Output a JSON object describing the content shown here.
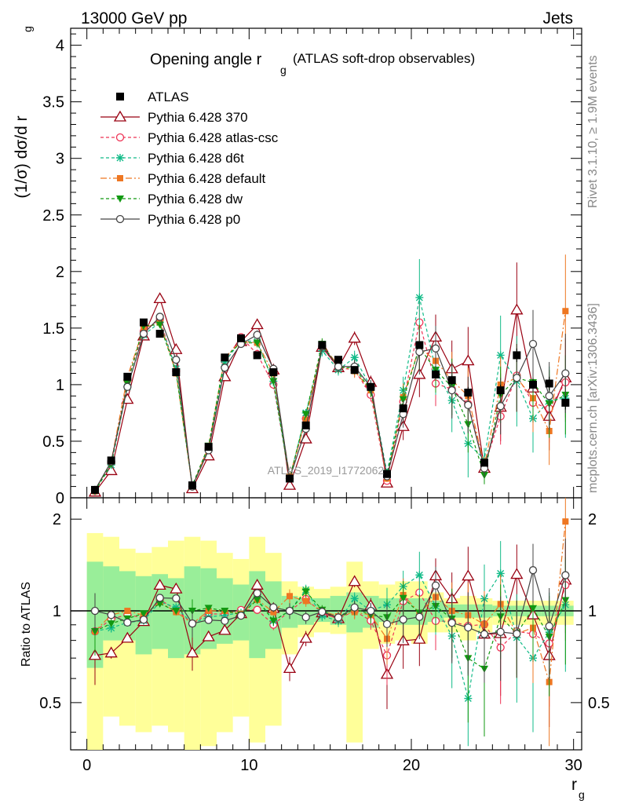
{
  "header": {
    "left": "13000 GeV pp",
    "right": "Jets"
  },
  "side_text": {
    "rivet": "Rivet 3.1.10, ≥ 1.9M events",
    "mcplots": "mcplots.cern.ch [arXiv:1306.3436]"
  },
  "plot_title": {
    "main": "Opening angle r",
    "sub": "g",
    "rest": "(ATLAS soft-drop observables)"
  },
  "watermark": "ATLAS_2019_I1772062",
  "colors": {
    "atlas": "#000000",
    "p370": "#990011",
    "csc": "#ee3355",
    "d6t": "#11bb88",
    "default": "#ee7722",
    "dw": "#119911",
    "p0": "#444444",
    "band_inner": "#99ee99",
    "band_outer": "#ffff99"
  },
  "chart_data": [
    {
      "type": "scatter",
      "panel": "main",
      "ylabel": "(1/σ) dσ/d r",
      "ylabel_sub": "g",
      "xlim": [
        -1,
        30.5
      ],
      "ylim": [
        0,
        4.15
      ],
      "xticks": [
        0,
        10,
        20,
        30
      ],
      "yticks": [
        0,
        0.5,
        1,
        1.5,
        2,
        2.5,
        3,
        3.5,
        4
      ],
      "ytick_labels": [
        "0",
        "0.5",
        "1",
        "1.5",
        "2",
        "2.5",
        "3",
        "3.5",
        "4"
      ],
      "x": [
        0.5,
        1.5,
        2.5,
        3.5,
        4.5,
        5.5,
        6.5,
        7.5,
        8.5,
        9.5,
        10.5,
        11.5,
        12.5,
        13.5,
        14.5,
        15.5,
        16.5,
        17.5,
        18.5,
        19.5,
        20.5,
        21.5,
        22.5,
        23.5,
        24.5,
        25.5,
        26.5,
        27.5,
        28.5,
        29.5
      ],
      "series": [
        {
          "name": "ATLAS",
          "key": "atlas",
          "marker": "square",
          "dash": "",
          "values": [
            0.07,
            0.33,
            1.07,
            1.55,
            1.45,
            1.11,
            0.11,
            0.45,
            1.24,
            1.41,
            1.26,
            1.11,
            0.17,
            0.64,
            1.35,
            1.22,
            1.13,
            0.98,
            0.21,
            0.79,
            1.35,
            1.09,
            1.04,
            0.93,
            0.31,
            0.95,
            1.26,
            1.0,
            1.01,
            0.84
          ],
          "errors": [
            0.01,
            0.01,
            0.02,
            0.02,
            0.02,
            0.02,
            0.01,
            0.01,
            0.02,
            0.02,
            0.02,
            0.02,
            0.01,
            0.02,
            0.02,
            0.02,
            0.02,
            0.02,
            0.02,
            0.03,
            0.03,
            0.04,
            0.04,
            0.05,
            0.03,
            0.05,
            0.06,
            0.06,
            0.06,
            0.06
          ]
        },
        {
          "name": "Pythia 6.428 370",
          "key": "p370",
          "marker": "triangle",
          "dash": "",
          "values": [
            0.05,
            0.24,
            0.87,
            1.43,
            1.76,
            1.31,
            0.08,
            0.37,
            1.07,
            1.38,
            1.53,
            1.13,
            0.11,
            0.52,
            1.33,
            1.15,
            1.41,
            1.02,
            0.13,
            0.63,
            1.09,
            1.42,
            1.14,
            1.21,
            0.26,
            0.8,
            1.66,
            0.97,
            0.72,
            1.06
          ],
          "errors": [
            0.01,
            0.01,
            0.02,
            0.03,
            0.03,
            0.03,
            0.01,
            0.01,
            0.03,
            0.03,
            0.04,
            0.04,
            0.01,
            0.03,
            0.05,
            0.05,
            0.06,
            0.06,
            0.03,
            0.12,
            0.2,
            0.2,
            0.25,
            0.3,
            0.1,
            0.3,
            0.42,
            0.35,
            0.3,
            0.35
          ]
        },
        {
          "name": "Pythia 6.428 atlas-csc",
          "key": "csc",
          "marker": "circle-open",
          "dash": "4,3",
          "values": [
            0.06,
            0.31,
            1.04,
            1.47,
            1.58,
            1.12,
            0.1,
            0.44,
            1.21,
            1.42,
            1.27,
            1.0,
            0.17,
            0.7,
            1.33,
            1.15,
            1.13,
            0.91,
            0.15,
            0.85,
            1.55,
            1.01,
            0.96,
            0.83,
            0.28,
            0.72,
            1.08,
            0.84,
            0.79,
            1.02
          ],
          "errors": [
            0.01,
            0.01,
            0.02,
            0.03,
            0.03,
            0.03,
            0.01,
            0.01,
            0.03,
            0.03,
            0.04,
            0.04,
            0.01,
            0.03,
            0.05,
            0.05,
            0.06,
            0.06,
            0.03,
            0.12,
            0.2,
            0.2,
            0.25,
            0.25,
            0.08,
            0.25,
            0.3,
            0.3,
            0.3,
            0.35
          ]
        },
        {
          "name": "Pythia 6.428 d6t",
          "key": "d6t",
          "marker": "star",
          "dash": "4,3",
          "values": [
            0.06,
            0.29,
            0.98,
            1.44,
            1.55,
            1.14,
            0.1,
            0.43,
            1.2,
            1.39,
            1.38,
            1.03,
            0.17,
            0.75,
            1.3,
            1.13,
            1.24,
            0.98,
            0.22,
            0.95,
            1.77,
            1.13,
            0.86,
            0.48,
            0.34,
            1.26,
            1.03,
            0.7,
            0.86,
            0.88
          ],
          "errors": [
            0.01,
            0.01,
            0.02,
            0.03,
            0.03,
            0.03,
            0.01,
            0.01,
            0.03,
            0.03,
            0.04,
            0.04,
            0.01,
            0.03,
            0.05,
            0.05,
            0.06,
            0.06,
            0.03,
            0.12,
            0.34,
            0.22,
            0.28,
            0.3,
            0.1,
            0.35,
            0.4,
            0.3,
            0.3,
            0.35
          ]
        },
        {
          "name": "Pythia 6.428 default",
          "key": "default",
          "marker": "square-small",
          "dash": "8,3,2,3",
          "values": [
            0.06,
            0.32,
            1.07,
            1.5,
            1.55,
            1.1,
            0.1,
            0.45,
            1.24,
            1.38,
            1.37,
            1.1,
            0.19,
            0.69,
            1.35,
            1.17,
            1.12,
            0.95,
            0.17,
            0.89,
            1.33,
            1.21,
            1.04,
            0.9,
            0.28,
            1.0,
            1.06,
            0.88,
            0.59,
            1.65
          ],
          "errors": [
            0.01,
            0.01,
            0.02,
            0.03,
            0.03,
            0.03,
            0.01,
            0.01,
            0.03,
            0.03,
            0.04,
            0.04,
            0.01,
            0.03,
            0.05,
            0.05,
            0.06,
            0.06,
            0.03,
            0.12,
            0.2,
            0.2,
            0.25,
            0.25,
            0.08,
            0.25,
            0.3,
            0.3,
            0.3,
            0.5
          ]
        },
        {
          "name": "Pythia 6.428 dw",
          "key": "dw",
          "marker": "triangle-down",
          "dash": "4,3",
          "values": [
            0.06,
            0.3,
            1.01,
            1.52,
            1.53,
            1.11,
            0.11,
            0.46,
            1.24,
            1.37,
            1.37,
            1.03,
            0.17,
            0.74,
            1.36,
            1.15,
            1.15,
            0.95,
            0.2,
            0.87,
            1.33,
            1.13,
            0.98,
            0.65,
            0.2,
            0.91,
            1.06,
            1.02,
            0.83,
            0.91
          ],
          "errors": [
            0.01,
            0.01,
            0.02,
            0.03,
            0.03,
            0.03,
            0.01,
            0.01,
            0.03,
            0.03,
            0.04,
            0.04,
            0.01,
            0.03,
            0.05,
            0.05,
            0.06,
            0.06,
            0.03,
            0.12,
            0.2,
            0.2,
            0.25,
            0.25,
            0.08,
            0.25,
            0.3,
            0.3,
            0.3,
            0.35
          ]
        },
        {
          "name": "Pythia 6.428 p0",
          "key": "p0",
          "marker": "circle-open",
          "dash": "",
          "values": [
            0.07,
            0.32,
            0.98,
            1.45,
            1.6,
            1.22,
            0.1,
            0.42,
            1.15,
            1.36,
            1.44,
            1.14,
            0.17,
            0.61,
            1.34,
            1.16,
            1.16,
            0.98,
            0.19,
            0.74,
            1.29,
            1.32,
            0.95,
            0.82,
            0.26,
            0.81,
            1.06,
            1.36,
            0.9,
            1.1
          ],
          "errors": [
            0.01,
            0.01,
            0.02,
            0.03,
            0.03,
            0.03,
            0.01,
            0.01,
            0.03,
            0.03,
            0.04,
            0.04,
            0.01,
            0.03,
            0.05,
            0.05,
            0.06,
            0.06,
            0.03,
            0.12,
            0.2,
            0.2,
            0.25,
            0.25,
            0.08,
            0.25,
            0.3,
            0.3,
            0.3,
            0.35
          ]
        }
      ]
    },
    {
      "type": "scatter",
      "panel": "ratio",
      "ylabel": "Ratio to ATLAS",
      "xlabel": "r",
      "xlabel_sub": "g",
      "xlim": [
        -1,
        30.5
      ],
      "ylim": [
        0.35,
        2.35
      ],
      "xticks": [
        0,
        10,
        20,
        30
      ],
      "xtick_labels": [
        "0",
        "10",
        "20",
        "30"
      ],
      "yticks": [
        0.5,
        1,
        2
      ],
      "ytick_labels": [
        "0.5",
        "1",
        "2"
      ],
      "reference_line": 1,
      "band_inner_lo": [
        0.65,
        0.8,
        0.8,
        0.72,
        0.75,
        0.7,
        0.72,
        0.75,
        0.78,
        0.8,
        0.7,
        0.75,
        0.88,
        0.9,
        0.92,
        0.9,
        0.85,
        0.88,
        0.92,
        0.9,
        0.9,
        0.92,
        0.95,
        0.95,
        0.95,
        0.96,
        0.96,
        0.96,
        0.96,
        0.96
      ],
      "band_inner_hi": [
        1.45,
        1.4,
        1.35,
        1.3,
        1.32,
        1.28,
        1.4,
        1.38,
        1.28,
        1.22,
        1.35,
        1.25,
        1.12,
        1.1,
        1.1,
        1.12,
        1.15,
        1.12,
        1.1,
        1.1,
        1.1,
        1.08,
        1.05,
        1.05,
        1.05,
        1.04,
        1.04,
        1.04,
        1.04,
        1.04
      ],
      "band_outer_lo": [
        0.35,
        0.45,
        0.42,
        0.4,
        0.42,
        0.4,
        0.35,
        0.36,
        0.4,
        0.45,
        0.37,
        0.42,
        0.72,
        0.82,
        0.85,
        0.84,
        0.37,
        0.75,
        0.78,
        0.8,
        0.78,
        0.85,
        0.85,
        0.8,
        0.85,
        0.9,
        0.9,
        0.9,
        0.9,
        0.9
      ],
      "band_outer_hi": [
        1.8,
        1.75,
        1.6,
        1.55,
        1.62,
        1.7,
        1.75,
        1.7,
        1.55,
        1.48,
        1.75,
        1.55,
        1.25,
        1.2,
        1.18,
        1.2,
        1.45,
        1.25,
        1.22,
        1.25,
        1.25,
        1.15,
        1.1,
        1.12,
        1.1,
        1.08,
        1.08,
        1.08,
        1.08,
        1.08
      ],
      "ratio_error_scale": 1
    }
  ]
}
